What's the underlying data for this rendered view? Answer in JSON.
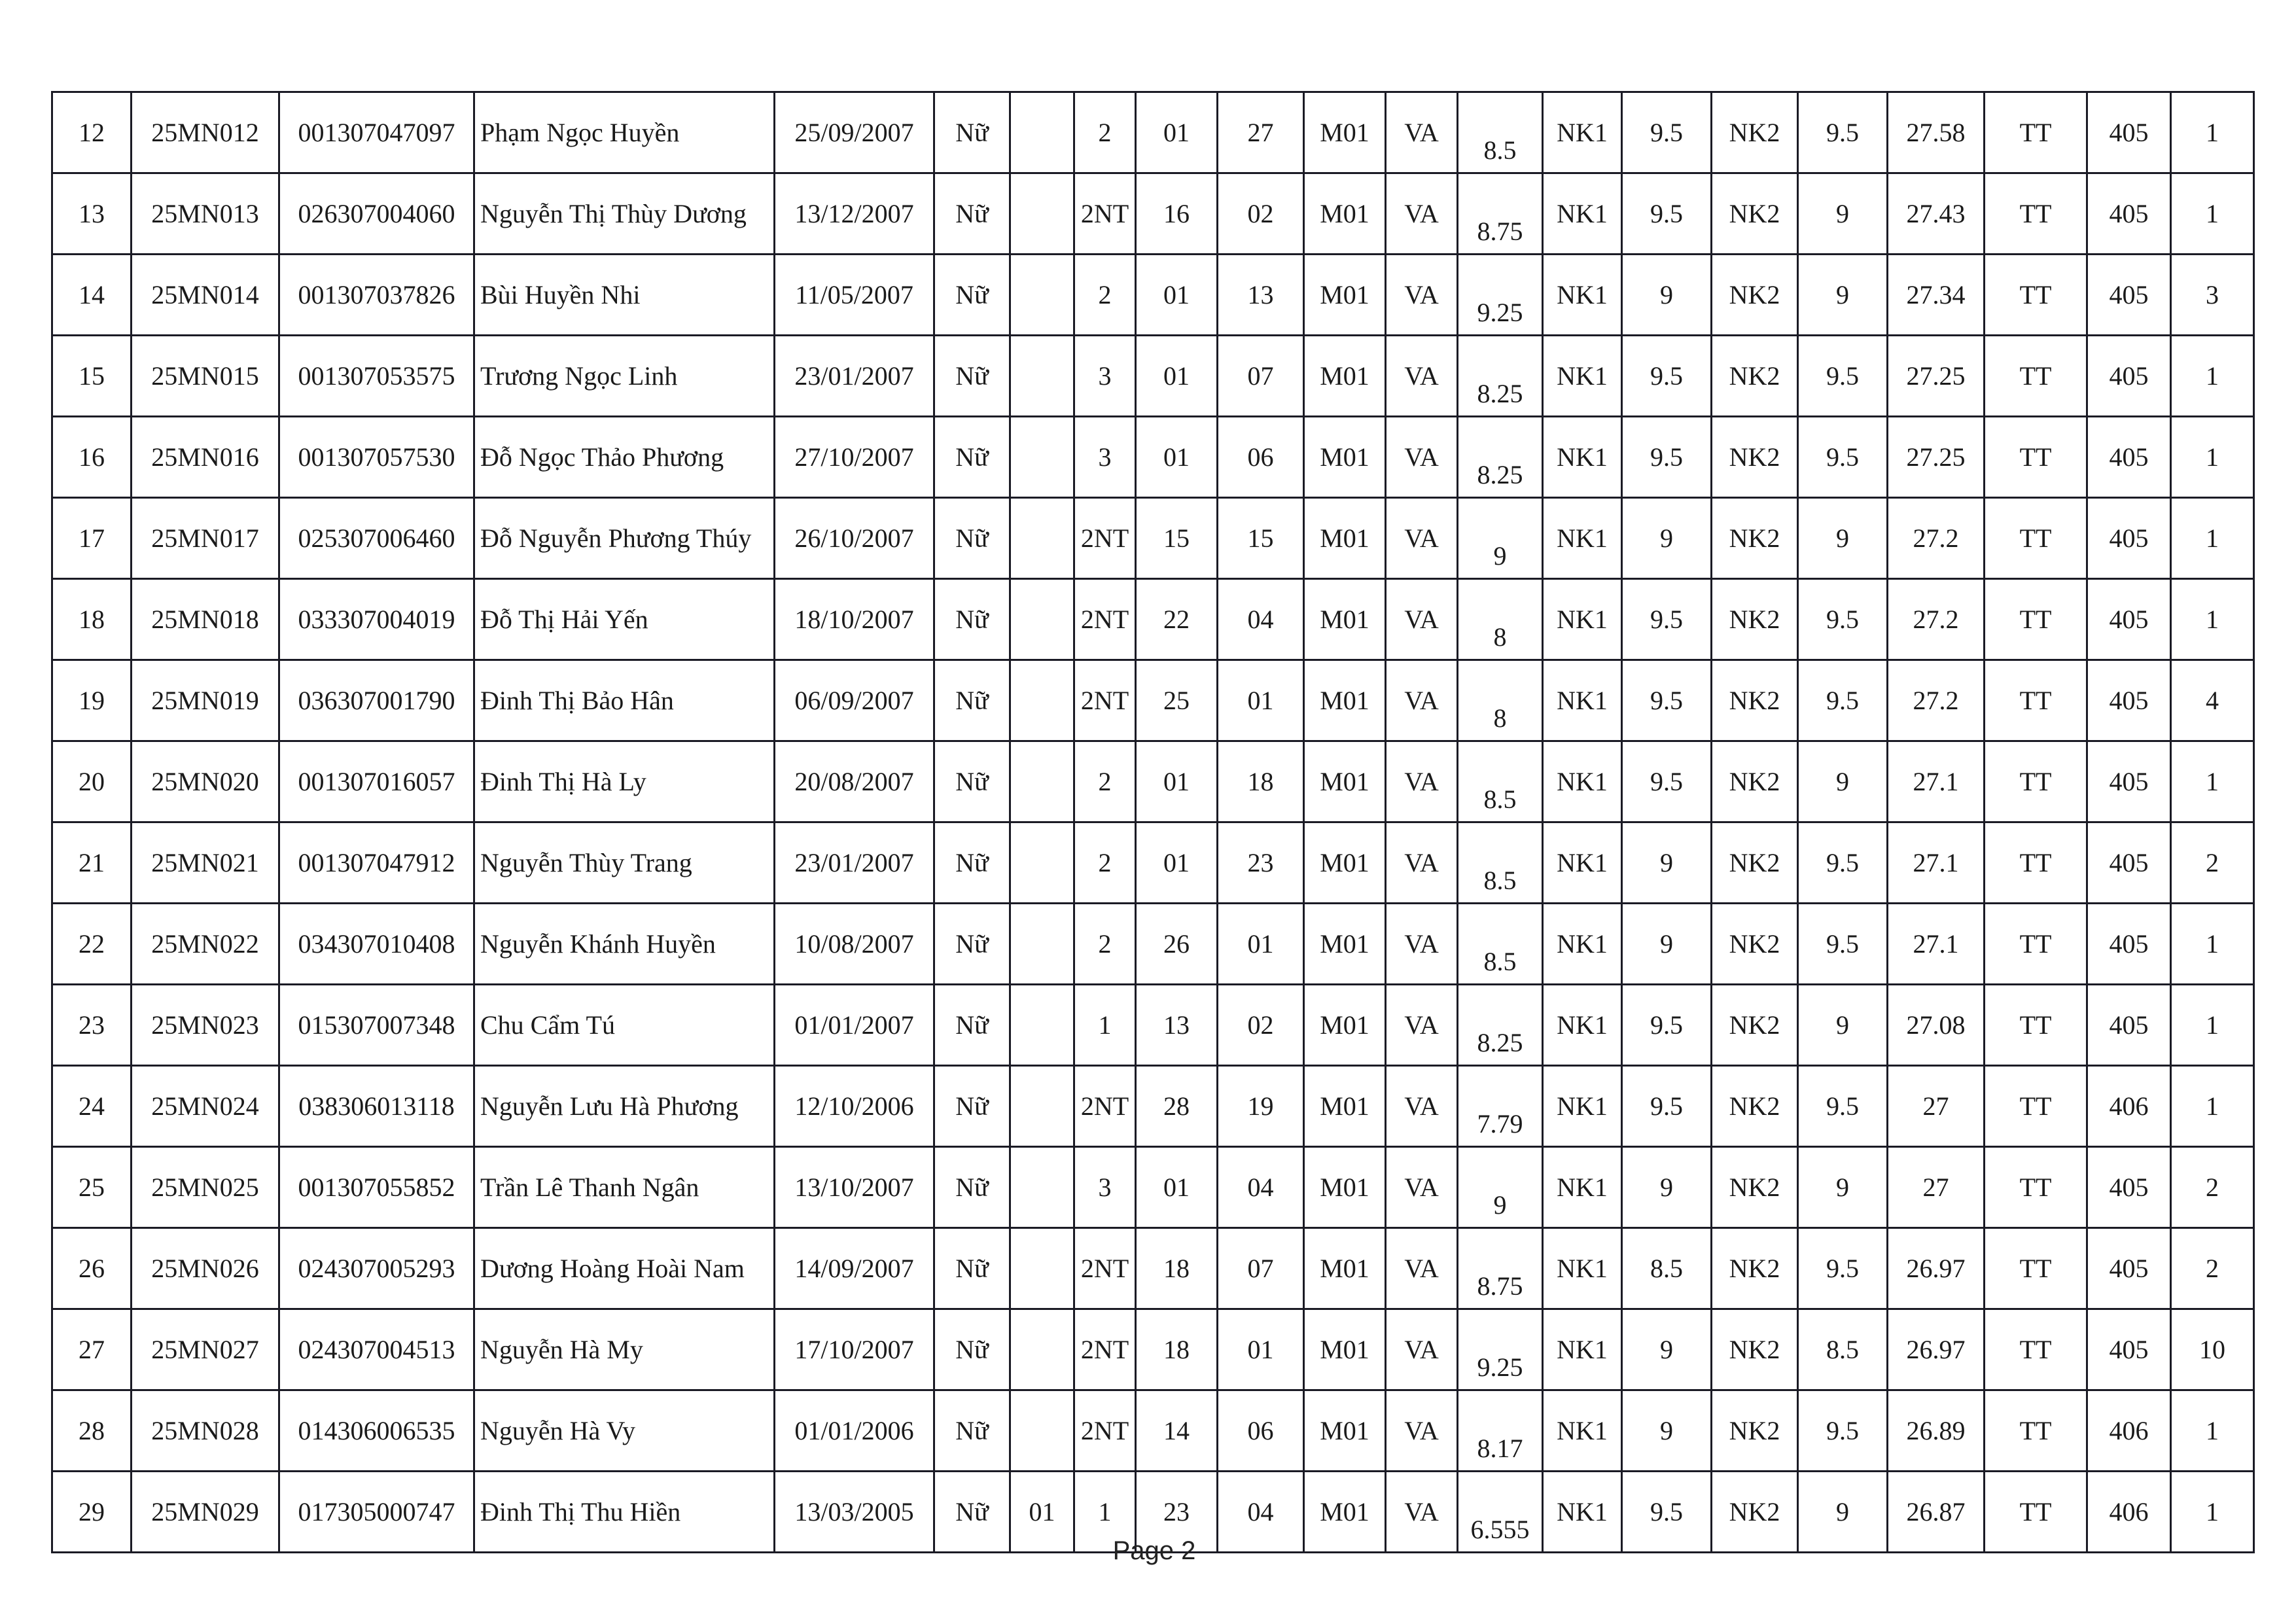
{
  "rows": [
    [
      "12",
      "25MN012",
      "001307047097",
      "Phạm Ngọc Huyền",
      "25/09/2007",
      "Nữ",
      "",
      "2",
      "01",
      "27",
      "M01",
      "VA",
      "8.5",
      "NK1",
      "9.5",
      "NK2",
      "9.5",
      "27.58",
      "TT",
      "405",
      "1"
    ],
    [
      "13",
      "25MN013",
      "026307004060",
      "Nguyễn Thị Thùy Dương",
      "13/12/2007",
      "Nữ",
      "",
      "2NT",
      "16",
      "02",
      "M01",
      "VA",
      "8.75",
      "NK1",
      "9.5",
      "NK2",
      "9",
      "27.43",
      "TT",
      "405",
      "1"
    ],
    [
      "14",
      "25MN014",
      "001307037826",
      "Bùi Huyền Nhi",
      "11/05/2007",
      "Nữ",
      "",
      "2",
      "01",
      "13",
      "M01",
      "VA",
      "9.25",
      "NK1",
      "9",
      "NK2",
      "9",
      "27.34",
      "TT",
      "405",
      "3"
    ],
    [
      "15",
      "25MN015",
      "001307053575",
      "Trương Ngọc Linh",
      "23/01/2007",
      "Nữ",
      "",
      "3",
      "01",
      "07",
      "M01",
      "VA",
      "8.25",
      "NK1",
      "9.5",
      "NK2",
      "9.5",
      "27.25",
      "TT",
      "405",
      "1"
    ],
    [
      "16",
      "25MN016",
      "001307057530",
      "Đỗ Ngọc Thảo Phương",
      "27/10/2007",
      "Nữ",
      "",
      "3",
      "01",
      "06",
      "M01",
      "VA",
      "8.25",
      "NK1",
      "9.5",
      "NK2",
      "9.5",
      "27.25",
      "TT",
      "405",
      "1"
    ],
    [
      "17",
      "25MN017",
      "025307006460",
      "Đỗ Nguyễn Phương Thúy",
      "26/10/2007",
      "Nữ",
      "",
      "2NT",
      "15",
      "15",
      "M01",
      "VA",
      "9",
      "NK1",
      "9",
      "NK2",
      "9",
      "27.2",
      "TT",
      "405",
      "1"
    ],
    [
      "18",
      "25MN018",
      "033307004019",
      "Đỗ Thị Hải Yến",
      "18/10/2007",
      "Nữ",
      "",
      "2NT",
      "22",
      "04",
      "M01",
      "VA",
      "8",
      "NK1",
      "9.5",
      "NK2",
      "9.5",
      "27.2",
      "TT",
      "405",
      "1"
    ],
    [
      "19",
      "25MN019",
      "036307001790",
      "Đinh Thị Bảo Hân",
      "06/09/2007",
      "Nữ",
      "",
      "2NT",
      "25",
      "01",
      "M01",
      "VA",
      "8",
      "NK1",
      "9.5",
      "NK2",
      "9.5",
      "27.2",
      "TT",
      "405",
      "4"
    ],
    [
      "20",
      "25MN020",
      "001307016057",
      "Đinh Thị Hà Ly",
      "20/08/2007",
      "Nữ",
      "",
      "2",
      "01",
      "18",
      "M01",
      "VA",
      "8.5",
      "NK1",
      "9.5",
      "NK2",
      "9",
      "27.1",
      "TT",
      "405",
      "1"
    ],
    [
      "21",
      "25MN021",
      "001307047912",
      "Nguyễn Thùy Trang",
      "23/01/2007",
      "Nữ",
      "",
      "2",
      "01",
      "23",
      "M01",
      "VA",
      "8.5",
      "NK1",
      "9",
      "NK2",
      "9.5",
      "27.1",
      "TT",
      "405",
      "2"
    ],
    [
      "22",
      "25MN022",
      "034307010408",
      "Nguyễn Khánh Huyền",
      "10/08/2007",
      "Nữ",
      "",
      "2",
      "26",
      "01",
      "M01",
      "VA",
      "8.5",
      "NK1",
      "9",
      "NK2",
      "9.5",
      "27.1",
      "TT",
      "405",
      "1"
    ],
    [
      "23",
      "25MN023",
      "015307007348",
      "Chu Cẩm Tú",
      "01/01/2007",
      "Nữ",
      "",
      "1",
      "13",
      "02",
      "M01",
      "VA",
      "8.25",
      "NK1",
      "9.5",
      "NK2",
      "9",
      "27.08",
      "TT",
      "405",
      "1"
    ],
    [
      "24",
      "25MN024",
      "038306013118",
      "Nguyễn Lưu Hà Phương",
      "12/10/2006",
      "Nữ",
      "",
      "2NT",
      "28",
      "19",
      "M01",
      "VA",
      "7.79",
      "NK1",
      "9.5",
      "NK2",
      "9.5",
      "27",
      "TT",
      "406",
      "1"
    ],
    [
      "25",
      "25MN025",
      "001307055852",
      "Trần Lê Thanh Ngân",
      "13/10/2007",
      "Nữ",
      "",
      "3",
      "01",
      "04",
      "M01",
      "VA",
      "9",
      "NK1",
      "9",
      "NK2",
      "9",
      "27",
      "TT",
      "405",
      "2"
    ],
    [
      "26",
      "25MN026",
      "024307005293",
      "Dương Hoàng Hoài Nam",
      "14/09/2007",
      "Nữ",
      "",
      "2NT",
      "18",
      "07",
      "M01",
      "VA",
      "8.75",
      "NK1",
      "8.5",
      "NK2",
      "9.5",
      "26.97",
      "TT",
      "405",
      "2"
    ],
    [
      "27",
      "25MN027",
      "024307004513",
      "Nguyễn Hà My",
      "17/10/2007",
      "Nữ",
      "",
      "2NT",
      "18",
      "01",
      "M01",
      "VA",
      "9.25",
      "NK1",
      "9",
      "NK2",
      "8.5",
      "26.97",
      "TT",
      "405",
      "10"
    ],
    [
      "28",
      "25MN028",
      "014306006535",
      "Nguyễn Hà Vy",
      "01/01/2006",
      "Nữ",
      "",
      "2NT",
      "14",
      "06",
      "M01",
      "VA",
      "8.17",
      "NK1",
      "9",
      "NK2",
      "9.5",
      "26.89",
      "TT",
      "406",
      "1"
    ],
    [
      "29",
      "25MN029",
      "017305000747",
      "Đinh Thị Thu Hiền",
      "13/03/2005",
      "Nữ",
      "01",
      "1",
      "23",
      "04",
      "M01",
      "VA",
      "6.555",
      "NK1",
      "9.5",
      "NK2",
      "9",
      "26.87",
      "TT",
      "406",
      "1"
    ]
  ],
  "footer": {
    "page_label": "Page 2"
  }
}
